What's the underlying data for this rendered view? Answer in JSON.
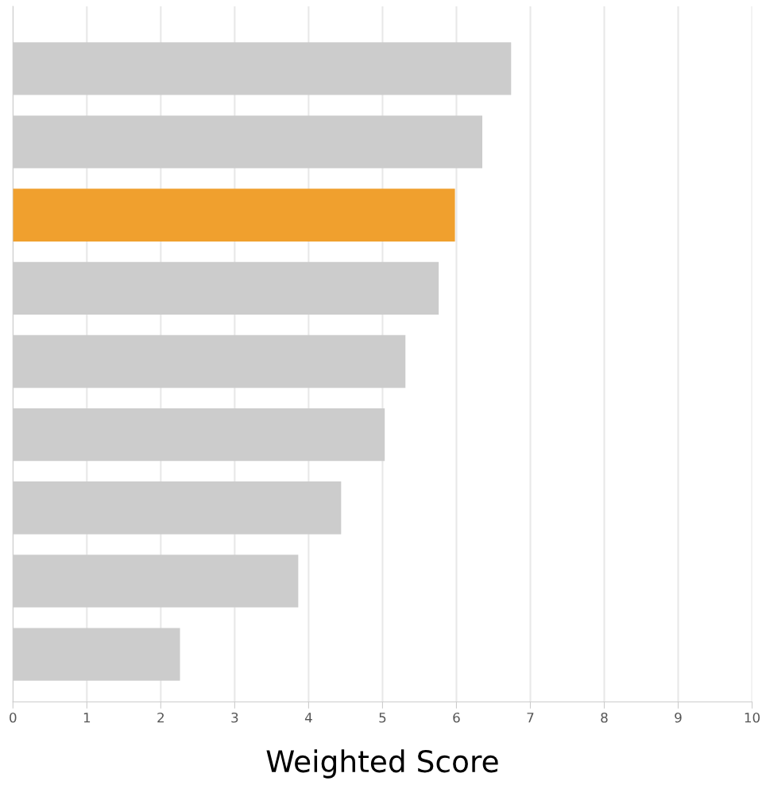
{
  "chart_data": {
    "type": "bar",
    "orientation": "horizontal",
    "xlabel": "Weighted Score",
    "categories": [
      null,
      null,
      null,
      null,
      null,
      null,
      null,
      null,
      null
    ],
    "values": [
      6.74,
      6.35,
      5.98,
      5.76,
      5.31,
      5.03,
      4.44,
      3.86,
      2.26
    ],
    "colors": [
      "#cccccc",
      "#cccccc",
      "#f0a02e",
      "#cccccc",
      "#cccccc",
      "#cccccc",
      "#cccccc",
      "#cccccc",
      "#cccccc"
    ],
    "xlim": [
      0,
      10
    ],
    "xticks": [
      0,
      1,
      2,
      3,
      4,
      5,
      6,
      7,
      8,
      9,
      10
    ],
    "grid": "x",
    "tick_labels": "x",
    "legend": false
  }
}
